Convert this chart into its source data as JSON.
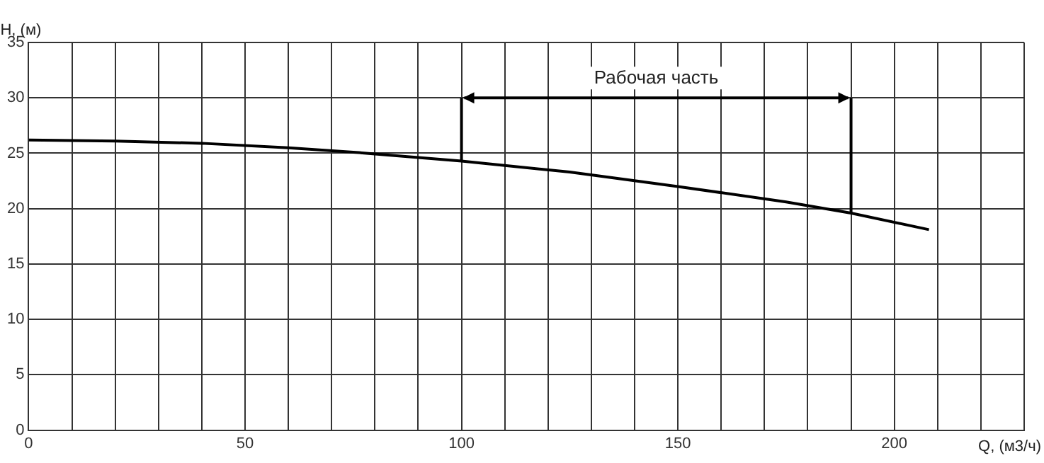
{
  "chart_data": {
    "type": "line",
    "xlabel": "Q, (м3/ч)",
    "ylabel": "H, (м)",
    "x": [
      0,
      20,
      40,
      60,
      75,
      100,
      125,
      150,
      175,
      190,
      208
    ],
    "series": [
      {
        "color": "#000000",
        "values": [
          26.2,
          26.1,
          25.9,
          25.5,
          25.1,
          24.3,
          23.3,
          22.0,
          20.6,
          19.6,
          18.1
        ]
      }
    ],
    "xlim": [
      0,
      230
    ],
    "xticks": [
      0,
      {
        "value": 10,
        "label": null
      },
      {
        "value": 20,
        "label": null
      },
      {
        "value": 30,
        "label": null
      },
      {
        "value": 40,
        "label": null
      },
      50,
      {
        "value": 60,
        "label": null
      },
      {
        "value": 70,
        "label": null
      },
      {
        "value": 80,
        "label": null
      },
      {
        "value": 90,
        "label": null
      },
      100,
      {
        "value": 110,
        "label": null
      },
      {
        "value": 120,
        "label": null
      },
      {
        "value": 130,
        "label": null
      },
      {
        "value": 140,
        "label": null
      },
      150,
      {
        "value": 160,
        "label": null
      },
      {
        "value": 170,
        "label": null
      },
      {
        "value": 180,
        "label": null
      },
      {
        "value": 190,
        "label": null
      },
      200,
      {
        "value": 210,
        "label": null
      },
      {
        "value": 220,
        "label": null
      },
      {
        "value": 230,
        "label": null
      }
    ],
    "ylim": [
      0,
      35
    ],
    "yticks": [
      0,
      5,
      10,
      15,
      20,
      25,
      30,
      35
    ],
    "ref_lines": [
      {
        "axis": "x",
        "value": 100,
        "color": "#000000"
      },
      {
        "axis": "x",
        "value": 190,
        "color": "#000000"
      }
    ],
    "annotations": [
      "Рабочая часть"
    ],
    "grid": true,
    "marker": "none",
    "line_style": "solid",
    "legend": false
  }
}
